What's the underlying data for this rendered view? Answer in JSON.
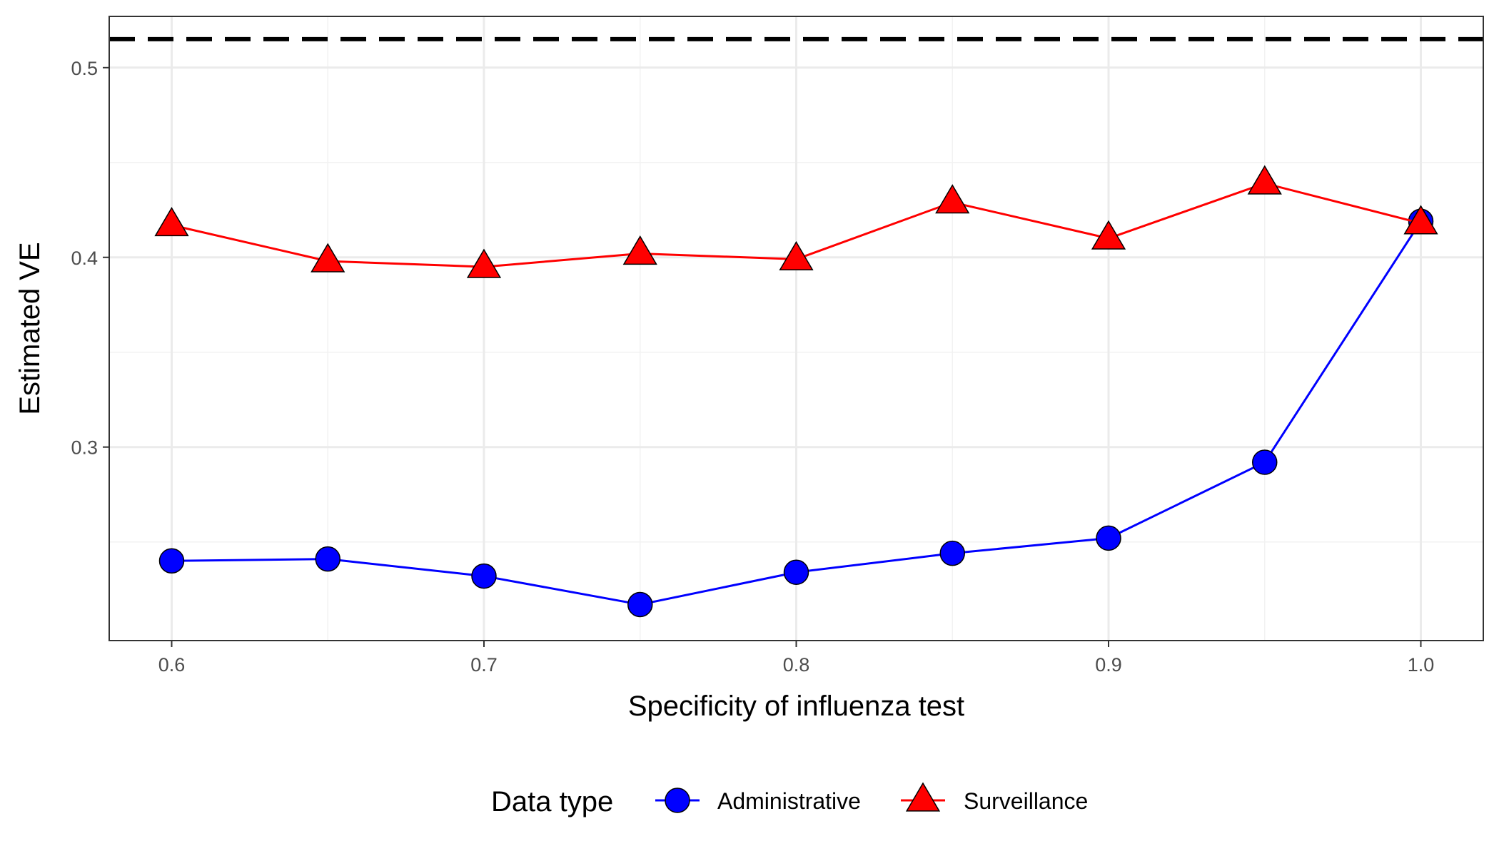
{
  "chart_data": {
    "type": "line",
    "title": "",
    "xlabel": "Specificity of influenza test",
    "ylabel": "Estimated VE",
    "x": [
      0.6,
      0.65,
      0.7,
      0.75,
      0.8,
      0.85,
      0.9,
      0.95,
      1.0
    ],
    "xlim": [
      0.58,
      1.02
    ],
    "ylim": [
      0.198,
      0.527
    ],
    "x_ticks": [
      {
        "value": 0.6,
        "label": "0.6"
      },
      {
        "value": 0.7,
        "label": "0.7"
      },
      {
        "value": 0.8,
        "label": "0.8"
      },
      {
        "value": 0.9,
        "label": "0.9"
      },
      {
        "value": 1.0,
        "label": "1.0"
      }
    ],
    "y_ticks": [
      {
        "value": 0.3,
        "label": "0.3"
      },
      {
        "value": 0.4,
        "label": "0.4"
      },
      {
        "value": 0.5,
        "label": "0.5"
      }
    ],
    "grid": true,
    "reference_line": {
      "value": 0.515,
      "style": "dashed",
      "color": "#000000"
    },
    "legend": {
      "title": "Data type",
      "position": "bottom"
    },
    "series": [
      {
        "name": "Administrative",
        "color": "#0000ff",
        "fill": "#0000ff",
        "marker": "circle",
        "values": [
          0.24,
          0.241,
          0.232,
          0.217,
          0.234,
          0.244,
          0.252,
          0.292,
          0.419
        ]
      },
      {
        "name": "Surveillance",
        "color": "#ff0000",
        "fill": "#ff0000",
        "marker": "triangle",
        "values": [
          0.417,
          0.398,
          0.395,
          0.402,
          0.399,
          0.429,
          0.41,
          0.439,
          0.418
        ]
      }
    ]
  }
}
